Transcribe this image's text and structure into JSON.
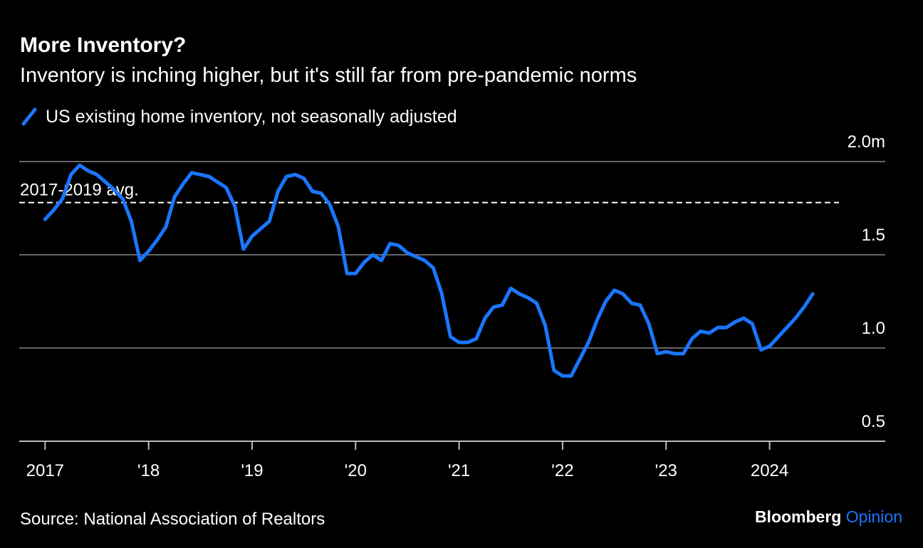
{
  "chart_data": {
    "type": "line",
    "title": "More Inventory?",
    "subtitle": "Inventory is inching higher, but it's still far from pre-pandemic norms",
    "source": "Source: National Association of Realtors",
    "brand": "Bloomberg",
    "brand_suffix": "Opinion",
    "x": [
      "2017-01",
      "2017-02",
      "2017-03",
      "2017-04",
      "2017-05",
      "2017-06",
      "2017-07",
      "2017-08",
      "2017-09",
      "2017-10",
      "2017-11",
      "2017-12",
      "2018-01",
      "2018-02",
      "2018-03",
      "2018-04",
      "2018-05",
      "2018-06",
      "2018-07",
      "2018-08",
      "2018-09",
      "2018-10",
      "2018-11",
      "2018-12",
      "2019-01",
      "2019-02",
      "2019-03",
      "2019-04",
      "2019-05",
      "2019-06",
      "2019-07",
      "2019-08",
      "2019-09",
      "2019-10",
      "2019-11",
      "2019-12",
      "2020-01",
      "2020-02",
      "2020-03",
      "2020-04",
      "2020-05",
      "2020-06",
      "2020-07",
      "2020-08",
      "2020-09",
      "2020-10",
      "2020-11",
      "2020-12",
      "2021-01",
      "2021-02",
      "2021-03",
      "2021-04",
      "2021-05",
      "2021-06",
      "2021-07",
      "2021-08",
      "2021-09",
      "2021-10",
      "2021-11",
      "2021-12",
      "2022-01",
      "2022-02",
      "2022-03",
      "2022-04",
      "2022-05",
      "2022-06",
      "2022-07",
      "2022-08",
      "2022-09",
      "2022-10",
      "2022-11",
      "2022-12",
      "2023-01",
      "2023-02",
      "2023-03",
      "2023-04",
      "2023-05",
      "2023-06",
      "2023-07",
      "2023-08",
      "2023-09",
      "2023-10",
      "2023-11",
      "2023-12",
      "2024-01",
      "2024-02",
      "2024-03",
      "2024-04",
      "2024-05",
      "2024-06"
    ],
    "series": [
      {
        "name": "US existing home inventory, not seasonally adjusted",
        "color": "#1a76ff",
        "values": [
          1.69,
          1.74,
          1.8,
          1.93,
          1.98,
          1.95,
          1.93,
          1.89,
          1.85,
          1.8,
          1.68,
          1.47,
          1.52,
          1.58,
          1.65,
          1.81,
          1.88,
          1.94,
          1.93,
          1.92,
          1.89,
          1.86,
          1.76,
          1.53,
          1.6,
          1.64,
          1.68,
          1.84,
          1.92,
          1.93,
          1.91,
          1.84,
          1.83,
          1.77,
          1.65,
          1.4,
          1.4,
          1.46,
          1.5,
          1.47,
          1.56,
          1.55,
          1.51,
          1.49,
          1.47,
          1.43,
          1.29,
          1.06,
          1.03,
          1.03,
          1.05,
          1.16,
          1.22,
          1.23,
          1.32,
          1.29,
          1.27,
          1.24,
          1.12,
          0.88,
          0.85,
          0.85,
          0.94,
          1.03,
          1.15,
          1.25,
          1.31,
          1.29,
          1.24,
          1.23,
          1.13,
          0.97,
          0.98,
          0.97,
          0.97,
          1.05,
          1.09,
          1.08,
          1.11,
          1.11,
          1.14,
          1.16,
          1.13,
          0.99,
          1.01,
          1.06,
          1.11,
          1.16,
          1.22,
          1.29
        ]
      }
    ],
    "annotations": [
      {
        "label": "2017-2019 avg.",
        "value": 1.78
      }
    ],
    "xlim": [
      "2016-10",
      "2025-02"
    ],
    "xticks": [
      {
        "value": "2017-01",
        "label": "2017"
      },
      {
        "value": "2018-01",
        "label": "'18"
      },
      {
        "value": "2019-01",
        "label": "'19"
      },
      {
        "value": "2020-01",
        "label": "'20"
      },
      {
        "value": "2021-01",
        "label": "'21"
      },
      {
        "value": "2022-01",
        "label": "'22"
      },
      {
        "value": "2023-01",
        "label": "'23"
      },
      {
        "value": "2024-01",
        "label": "2024"
      }
    ],
    "ylim": [
      0.5,
      2.0
    ],
    "yticks": [
      0.5,
      {
        "value": 1.0,
        "label": "1.0"
      },
      1.5,
      {
        "value": 2.0,
        "label": "2.0m"
      }
    ],
    "grid": true
  }
}
